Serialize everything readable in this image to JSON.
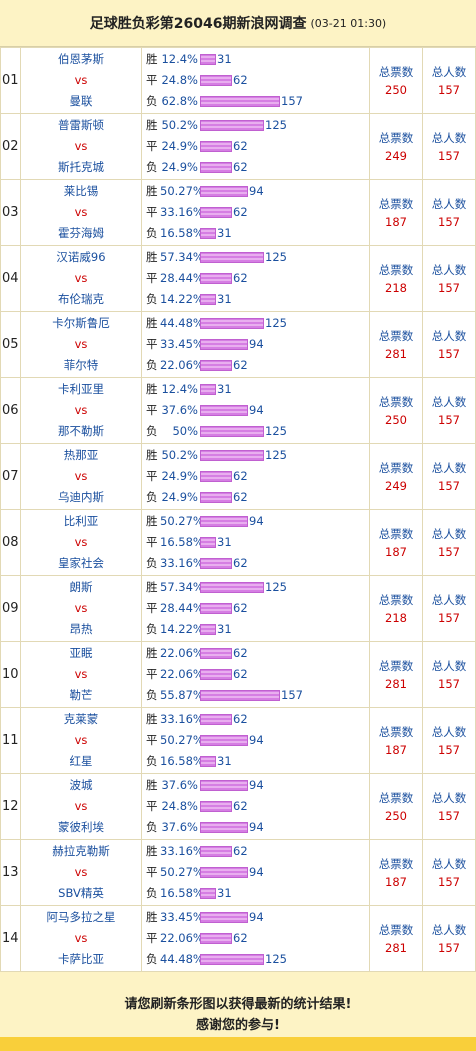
{
  "header": {
    "title": "足球胜负彩第26046期新浪网调查",
    "time": "(03-21 01:30)"
  },
  "labels": {
    "vs": "vs",
    "total_votes": "总票数",
    "total_people": "总人数"
  },
  "matches": [
    {
      "num": "01",
      "home": "伯恩茅斯",
      "away": "曼联",
      "rows": [
        {
          "label": "胜",
          "pct": "12.4%",
          "count": "31"
        },
        {
          "label": "平",
          "pct": "24.8%",
          "count": "62"
        },
        {
          "label": "负",
          "pct": "62.8%",
          "count": "157"
        }
      ],
      "votes": "250",
      "people": "157"
    },
    {
      "num": "02",
      "home": "普雷斯顿",
      "away": "斯托克城",
      "rows": [
        {
          "label": "胜",
          "pct": "50.2%",
          "count": "125"
        },
        {
          "label": "平",
          "pct": "24.9%",
          "count": "62"
        },
        {
          "label": "负",
          "pct": "24.9%",
          "count": "62"
        }
      ],
      "votes": "249",
      "people": "157"
    },
    {
      "num": "03",
      "home": "莱比锡",
      "away": "霍芬海姆",
      "rows": [
        {
          "label": "胜",
          "pct": "50.27%",
          "count": "94"
        },
        {
          "label": "平",
          "pct": "33.16%",
          "count": "62"
        },
        {
          "label": "负",
          "pct": "16.58%",
          "count": "31"
        }
      ],
      "votes": "187",
      "people": "157"
    },
    {
      "num": "04",
      "home": "汉诺威96",
      "away": "布伦瑞克",
      "rows": [
        {
          "label": "胜",
          "pct": "57.34%",
          "count": "125"
        },
        {
          "label": "平",
          "pct": "28.44%",
          "count": "62"
        },
        {
          "label": "负",
          "pct": "14.22%",
          "count": "31"
        }
      ],
      "votes": "218",
      "people": "157"
    },
    {
      "num": "05",
      "home": "卡尔斯鲁厄",
      "away": "菲尔特",
      "rows": [
        {
          "label": "胜",
          "pct": "44.48%",
          "count": "125"
        },
        {
          "label": "平",
          "pct": "33.45%",
          "count": "94"
        },
        {
          "label": "负",
          "pct": "22.06%",
          "count": "62"
        }
      ],
      "votes": "281",
      "people": "157"
    },
    {
      "num": "06",
      "home": "卡利亚里",
      "away": "那不勒斯",
      "rows": [
        {
          "label": "胜",
          "pct": "12.4%",
          "count": "31"
        },
        {
          "label": "平",
          "pct": "37.6%",
          "count": "94"
        },
        {
          "label": "负",
          "pct": "50%",
          "count": "125"
        }
      ],
      "votes": "250",
      "people": "157"
    },
    {
      "num": "07",
      "home": "热那亚",
      "away": "乌迪内斯",
      "rows": [
        {
          "label": "胜",
          "pct": "50.2%",
          "count": "125"
        },
        {
          "label": "平",
          "pct": "24.9%",
          "count": "62"
        },
        {
          "label": "负",
          "pct": "24.9%",
          "count": "62"
        }
      ],
      "votes": "249",
      "people": "157"
    },
    {
      "num": "08",
      "home": "比利亚",
      "away": "皇家社会",
      "rows": [
        {
          "label": "胜",
          "pct": "50.27%",
          "count": "94"
        },
        {
          "label": "平",
          "pct": "16.58%",
          "count": "31"
        },
        {
          "label": "负",
          "pct": "33.16%",
          "count": "62"
        }
      ],
      "votes": "187",
      "people": "157"
    },
    {
      "num": "09",
      "home": "朗斯",
      "away": "昂热",
      "rows": [
        {
          "label": "胜",
          "pct": "57.34%",
          "count": "125"
        },
        {
          "label": "平",
          "pct": "28.44%",
          "count": "62"
        },
        {
          "label": "负",
          "pct": "14.22%",
          "count": "31"
        }
      ],
      "votes": "218",
      "people": "157"
    },
    {
      "num": "10",
      "home": "亚眠",
      "away": "勒芒",
      "rows": [
        {
          "label": "胜",
          "pct": "22.06%",
          "count": "62"
        },
        {
          "label": "平",
          "pct": "22.06%",
          "count": "62"
        },
        {
          "label": "负",
          "pct": "55.87%",
          "count": "157"
        }
      ],
      "votes": "281",
      "people": "157"
    },
    {
      "num": "11",
      "home": "克莱蒙",
      "away": "红星",
      "rows": [
        {
          "label": "胜",
          "pct": "33.16%",
          "count": "62"
        },
        {
          "label": "平",
          "pct": "50.27%",
          "count": "94"
        },
        {
          "label": "负",
          "pct": "16.58%",
          "count": "31"
        }
      ],
      "votes": "187",
      "people": "157"
    },
    {
      "num": "12",
      "home": "波城",
      "away": "蒙彼利埃",
      "rows": [
        {
          "label": "胜",
          "pct": "37.6%",
          "count": "94"
        },
        {
          "label": "平",
          "pct": "24.8%",
          "count": "62"
        },
        {
          "label": "负",
          "pct": "37.6%",
          "count": "94"
        }
      ],
      "votes": "250",
      "people": "157"
    },
    {
      "num": "13",
      "home": "赫拉克勒斯",
      "away": "SBV精英",
      "rows": [
        {
          "label": "胜",
          "pct": "33.16%",
          "count": "62"
        },
        {
          "label": "平",
          "pct": "50.27%",
          "count": "94"
        },
        {
          "label": "负",
          "pct": "16.58%",
          "count": "31"
        }
      ],
      "votes": "187",
      "people": "157"
    },
    {
      "num": "14",
      "home": "阿马多拉之星",
      "away": "卡萨比亚",
      "rows": [
        {
          "label": "胜",
          "pct": "33.45%",
          "count": "94"
        },
        {
          "label": "平",
          "pct": "22.06%",
          "count": "62"
        },
        {
          "label": "负",
          "pct": "44.48%",
          "count": "125"
        }
      ],
      "votes": "281",
      "people": "157"
    }
  ],
  "footer": {
    "line1": "请您刷新条形图以获得最新的统计结果!",
    "line2": "感谢您的参与!"
  },
  "colors": {
    "header_bg": "#fdf3c5",
    "team_blue": "#1a4f9e",
    "vs_red": "#cc0000",
    "bar_pink": "#cc66dd",
    "footer_strip": "#f9cf3a"
  }
}
